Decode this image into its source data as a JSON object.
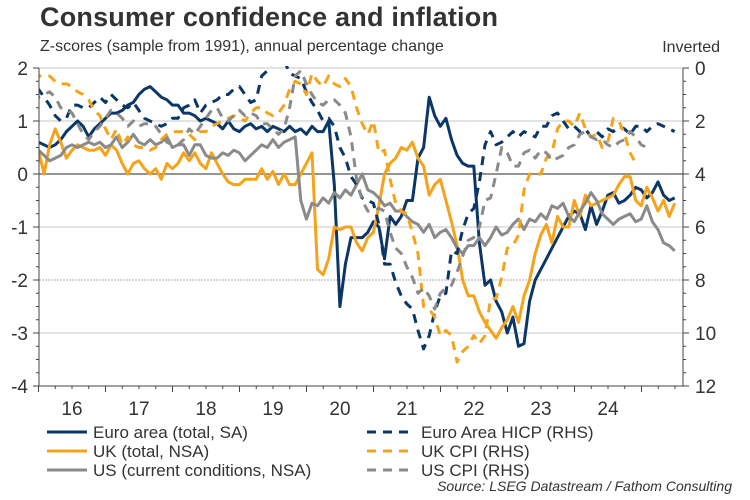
{
  "chart_data": {
    "type": "line",
    "title": "Consumer confidence and inflation",
    "subtitle": "Z-scores (sample from 1991), annual percentage change",
    "right_axis_note": "Inverted",
    "source": "Source: LSEG Datastream / Fathom Consulting",
    "x_start": 2015.5,
    "x_end": 2025.1,
    "xticks": [
      {
        "label": "16",
        "year": 2016
      },
      {
        "label": "17",
        "year": 2017
      },
      {
        "label": "18",
        "year": 2018
      },
      {
        "label": "19",
        "year": 2019
      },
      {
        "label": "20",
        "year": 2020
      },
      {
        "label": "21",
        "year": 2021
      },
      {
        "label": "22",
        "year": 2022
      },
      {
        "label": "23",
        "year": 2023
      },
      {
        "label": "24",
        "year": 2024
      }
    ],
    "left_axis": {
      "ylim": [
        -4,
        2
      ],
      "ticks": [
        2,
        1,
        0,
        -1,
        -2,
        -3,
        -4
      ]
    },
    "right_axis": {
      "ylim": [
        0,
        12
      ],
      "inverted": true,
      "ticks": [
        0,
        2,
        4,
        6,
        8,
        10,
        12
      ]
    },
    "colors": {
      "euro": "#0b3668",
      "uk": "#f5a31a",
      "us": "#8a8a8a"
    },
    "series": [
      {
        "name": "Euro area (total, SA)",
        "axis": "left",
        "style": "solid",
        "color": "#0b3668",
        "x_start": 2015.5,
        "step": 0.0833,
        "values": [
          0.85,
          0.7,
          0.55,
          0.5,
          0.55,
          0.5,
          0.6,
          0.55,
          0.5,
          0.55,
          0.65,
          0.8,
          0.9,
          1.0,
          0.9,
          0.7,
          0.85,
          0.95,
          1.05,
          1.15,
          1.15,
          1.2,
          1.3,
          1.35,
          1.5,
          1.6,
          1.65,
          1.55,
          1.45,
          1.4,
          1.3,
          1.3,
          1.15,
          1.15,
          1.1,
          1.0,
          1.05,
          1.0,
          0.95,
          0.85,
          1.0,
          0.85,
          0.8,
          0.9,
          0.95,
          0.85,
          0.9,
          0.8,
          0.9,
          0.85,
          0.8,
          0.9,
          0.8,
          0.85,
          0.75,
          0.9,
          0.8,
          0.8,
          1.0,
          -0.2,
          -2.5,
          -1.7,
          -1.2,
          -1.2,
          -1.2,
          -1.1,
          -0.9,
          -1.0,
          -1.6,
          -0.8,
          -0.95,
          -0.8,
          -0.5,
          -0.5,
          0.3,
          0.5,
          1.45,
          1.1,
          0.9,
          1.05,
          0.65,
          0.35,
          0.2,
          0.15,
          0.15,
          -1.3,
          -2.1,
          -2.0,
          -2.4,
          -2.6,
          -3.0,
          -2.7,
          -3.25,
          -3.2,
          -2.4,
          -2.0,
          -1.8,
          -1.6,
          -1.4,
          -1.2,
          -1.0,
          -0.8,
          -0.7,
          -0.75,
          -1.05,
          -0.6,
          -0.95,
          -0.7,
          -0.4,
          -0.35,
          -0.55,
          -0.5,
          -0.4,
          -0.25,
          -0.3,
          -0.45,
          -0.35,
          -0.15,
          -0.4,
          -0.5,
          -0.45,
          -0.65,
          -0.95,
          -0.75
        ]
      },
      {
        "name": "UK (total, NSA)",
        "axis": "left",
        "style": "solid",
        "color": "#f5a31a",
        "x_start": 2015.5,
        "step": 0.0833,
        "values": [
          1.3,
          0.95,
          0.9,
          0.7,
          0.85,
          0.85,
          0.45,
          0.0,
          0.55,
          0.85,
          0.6,
          0.3,
          0.45,
          0.55,
          0.5,
          0.45,
          0.45,
          0.5,
          0.35,
          0.55,
          0.45,
          0.2,
          0.0,
          0.2,
          0.25,
          0.1,
          0.0,
          0.1,
          -0.1,
          0.2,
          0.1,
          0.2,
          0.4,
          0.25,
          0.4,
          0.2,
          0.1,
          0.4,
          0.2,
          0.0,
          -0.15,
          -0.2,
          -0.2,
          -0.1,
          -0.1,
          -0.1,
          0.1,
          -0.1,
          0.05,
          -0.2,
          0.0,
          -0.2,
          -0.2,
          0.0,
          0.2,
          0.4,
          -1.8,
          -1.9,
          -1.6,
          -1.0,
          -1.05,
          -1.0,
          -1.0,
          -1.3,
          -1.45,
          -1.2,
          -1.1,
          -0.6,
          0.0,
          0.2,
          0.3,
          0.5,
          0.45,
          0.6,
          0.3,
          0.15,
          -0.4,
          -0.2,
          -0.1,
          -0.5,
          -0.9,
          -1.35,
          -2.0,
          -2.3,
          -2.3,
          -2.6,
          -2.8,
          -2.95,
          -3.1,
          -2.9,
          -2.75,
          -2.5,
          -2.8,
          -2.3,
          -2.0,
          -1.5,
          -1.15,
          -0.95,
          -1.3,
          -0.8,
          -1.0,
          -1.0,
          -0.5,
          -0.8,
          -0.4,
          -0.6,
          -0.55,
          -0.5,
          -0.45,
          -0.4,
          -0.2,
          -0.05,
          -0.05,
          -0.5,
          -0.6,
          -0.25,
          -0.45,
          -0.7,
          -0.5,
          -0.8,
          -0.55
        ]
      },
      {
        "name": "US (current conditions, NSA)",
        "axis": "left",
        "style": "solid",
        "color": "#8a8a8a",
        "x_start": 2015.5,
        "step": 0.0833,
        "values": [
          0.35,
          0.3,
          0.35,
          0.45,
          0.5,
          0.55,
          0.45,
          0.35,
          0.25,
          0.3,
          0.35,
          0.5,
          0.55,
          0.5,
          0.55,
          0.6,
          0.55,
          0.6,
          0.5,
          0.55,
          0.7,
          0.5,
          0.6,
          0.75,
          0.6,
          0.55,
          0.65,
          0.55,
          0.6,
          0.7,
          0.5,
          0.55,
          0.55,
          0.35,
          0.55,
          0.55,
          0.35,
          0.3,
          0.3,
          0.4,
          0.35,
          0.45,
          0.4,
          0.25,
          0.35,
          0.45,
          0.55,
          0.5,
          0.65,
          0.5,
          0.6,
          0.65,
          0.7,
          -0.5,
          -0.85,
          -0.55,
          -0.6,
          -0.45,
          -0.55,
          -0.35,
          -0.45,
          -0.3,
          -0.4,
          -0.2,
          0.0,
          -0.3,
          -0.35,
          -0.45,
          -0.6,
          -0.55,
          -0.7,
          -0.7,
          -0.8,
          -0.9,
          -0.95,
          -1.1,
          -0.95,
          -1.2,
          -1.1,
          -1.05,
          -1.2,
          -1.4,
          -1.5,
          -1.35,
          -1.35,
          -1.2,
          -1.35,
          -1.2,
          -1.0,
          -1.15,
          -1.1,
          -0.95,
          -0.85,
          -1.05,
          -0.85,
          -0.9,
          -0.75,
          -0.85,
          -0.6,
          -0.65,
          -0.55,
          -0.8,
          -0.9,
          -0.7,
          -0.55,
          -0.35,
          -0.5,
          -0.75,
          -0.85,
          -0.95,
          -0.85,
          -0.8,
          -0.75,
          -0.9,
          -0.85,
          -0.6,
          -0.9,
          -1.05,
          -1.3,
          -1.35,
          -1.45
        ]
      },
      {
        "name": "Euro Area HICP (RHS)",
        "axis": "right",
        "style": "dashed",
        "color": "#0b3668",
        "x_start": 2015.5,
        "step": 0.0833,
        "values": [
          0.1,
          -0.2,
          -0.2,
          0.0,
          0.2,
          0.5,
          0.8,
          1.1,
          1.4,
          1.8,
          2.0,
          1.9,
          1.4,
          1.4,
          1.5,
          1.5,
          1.3,
          1.1,
          1.3,
          1.0,
          1.2,
          1.4,
          1.5,
          1.3,
          1.6,
          1.9,
          2.0,
          2.1,
          2.2,
          2.1,
          1.9,
          1.9,
          1.5,
          1.4,
          1.2,
          1.7,
          1.4,
          1.3,
          1.2,
          1.0,
          1.0,
          0.8,
          0.7,
          1.0,
          1.3,
          1.2,
          0.3,
          0.1,
          -0.2,
          -0.3,
          -0.3,
          0.2,
          0.3,
          0.4,
          0.9,
          1.3,
          1.6,
          2.0,
          1.9,
          2.2,
          3.0,
          3.4,
          4.1,
          4.4,
          4.9,
          5.0,
          5.1,
          5.9,
          7.4,
          7.4,
          8.1,
          8.6,
          8.9,
          9.1,
          9.9,
          10.6,
          10.1,
          9.2,
          8.6,
          8.5,
          6.9,
          7.0,
          6.1,
          5.5,
          5.3,
          4.3,
          2.9,
          2.4,
          2.9,
          2.8,
          2.6,
          2.4,
          2.6,
          2.4,
          2.5,
          2.6,
          2.2,
          2.2,
          1.8,
          1.7,
          2.0,
          2.3,
          2.2,
          2.4,
          2.3,
          2.6,
          2.4,
          2.6,
          2.3,
          2.4,
          2.2,
          2.3,
          2.5,
          2.2,
          2.2,
          2.4,
          2.2,
          2.1,
          2.2,
          2.3,
          2.4,
          2.2
        ]
      },
      {
        "name": "UK CPI (RHS)",
        "axis": "right",
        "style": "dashed",
        "color": "#f5a31a",
        "x_start": 2015.5,
        "step": 0.0833,
        "values": [
          0.1,
          0.0,
          -0.1,
          0.1,
          0.1,
          0.2,
          0.3,
          0.3,
          0.3,
          0.5,
          0.6,
          0.6,
          0.7,
          0.9,
          1.0,
          1.2,
          1.6,
          1.8,
          2.3,
          2.7,
          2.3,
          2.9,
          2.6,
          2.9,
          3.0,
          3.0,
          3.1,
          3.0,
          2.7,
          2.5,
          2.4,
          2.4,
          2.4,
          2.5,
          2.7,
          2.4,
          2.4,
          2.2,
          2.1,
          2.0,
          1.9,
          1.8,
          1.9,
          2.0,
          1.7,
          1.5,
          1.5,
          1.7,
          1.8,
          1.7,
          1.4,
          0.8,
          0.5,
          0.6,
          1.0,
          0.2,
          0.5,
          0.7,
          0.3,
          0.6,
          0.7,
          0.4,
          0.7,
          1.5,
          2.1,
          2.5,
          2.0,
          3.2,
          3.1,
          4.2,
          5.1,
          5.4,
          5.5,
          6.2,
          7.0,
          9.0,
          9.1,
          9.4,
          10.1,
          9.9,
          10.1,
          11.1,
          10.7,
          10.5,
          10.1,
          10.4,
          10.1,
          8.7,
          8.7,
          7.9,
          6.8,
          6.7,
          6.3,
          4.6,
          4.0,
          4.0,
          4.0,
          3.4,
          3.2,
          2.3,
          2.0,
          2.0,
          2.2,
          1.7,
          2.3,
          2.6,
          2.5,
          3.0,
          2.8,
          1.9,
          2.0,
          2.5,
          3.2,
          3.6
        ]
      },
      {
        "name": "US CPI (RHS)",
        "axis": "right",
        "style": "dashed",
        "color": "#8a8a8a",
        "x_start": 2015.5,
        "step": 0.0833,
        "values": [
          0.5,
          0.8,
          1.0,
          1.4,
          1.0,
          0.9,
          1.1,
          1.0,
          0.9,
          1.1,
          1.5,
          1.6,
          1.7,
          2.1,
          2.5,
          2.7,
          2.4,
          2.2,
          1.9,
          1.6,
          1.7,
          1.9,
          2.2,
          2.0,
          2.2,
          2.1,
          2.1,
          2.2,
          2.5,
          2.8,
          2.9,
          2.9,
          2.7,
          2.3,
          2.5,
          2.2,
          1.9,
          1.6,
          1.5,
          1.9,
          2.0,
          1.8,
          1.6,
          1.8,
          1.7,
          1.8,
          2.1,
          2.1,
          2.3,
          2.5,
          2.3,
          1.5,
          0.3,
          0.1,
          0.6,
          1.0,
          1.3,
          1.4,
          1.2,
          1.2,
          1.4,
          1.7,
          2.6,
          4.2,
          5.0,
          5.4,
          5.4,
          5.3,
          5.4,
          6.2,
          6.8,
          7.0,
          7.5,
          7.9,
          8.5,
          8.3,
          8.6,
          9.1,
          8.5,
          8.3,
          8.2,
          7.7,
          7.1,
          6.5,
          6.4,
          6.0,
          5.0,
          4.9,
          4.0,
          3.0,
          3.2,
          3.7,
          3.7,
          3.2,
          3.1,
          3.4,
          3.1,
          3.2,
          3.5,
          3.4,
          3.3,
          3.0,
          2.9,
          2.5,
          2.4,
          2.6,
          2.7,
          2.7,
          2.9,
          3.0,
          2.8,
          2.7,
          2.4,
          2.6,
          2.9,
          3.0
        ]
      }
    ]
  },
  "legend": {
    "items": [
      {
        "label": "Euro area (total, SA)",
        "color": "#0b3668",
        "style": "solid"
      },
      {
        "label": "UK (total, NSA)",
        "color": "#f5a31a",
        "style": "solid"
      },
      {
        "label": "US (current conditions, NSA)",
        "color": "#8a8a8a",
        "style": "solid"
      },
      {
        "label": "Euro Area HICP (RHS)",
        "color": "#0b3668",
        "style": "dashed"
      },
      {
        "label": "UK CPI (RHS)",
        "color": "#f5a31a",
        "style": "dashed"
      },
      {
        "label": "US CPI (RHS)",
        "color": "#8a8a8a",
        "style": "dashed"
      }
    ]
  }
}
